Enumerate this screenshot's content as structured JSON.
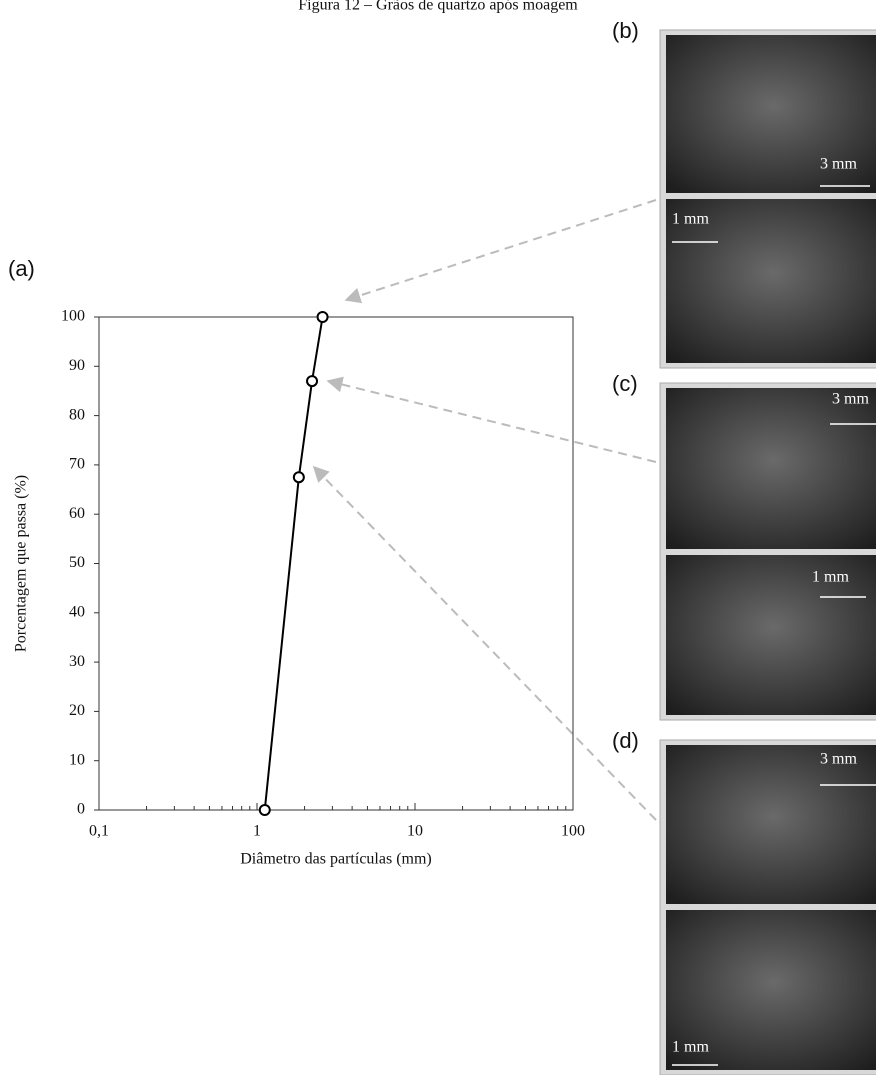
{
  "figure_title": "Figura 12 – Grãos de quartzo após moagem",
  "chart_data": {
    "type": "line",
    "panel_label": "(a)",
    "x": [
      1.12,
      1.84,
      2.23,
      2.6
    ],
    "values": [
      0,
      67.5,
      87,
      100
    ],
    "color": "#000000",
    "marker": "circle",
    "x_scale": "log",
    "xlim": [
      0.1,
      100
    ],
    "xticks": [
      {
        "value": 0.1,
        "label": "0,1"
      },
      1,
      10,
      100
    ],
    "ylim": [
      0,
      100
    ],
    "yticks": [
      0,
      10,
      20,
      30,
      40,
      50,
      60,
      70,
      80,
      90,
      100
    ],
    "xlabel": "Diâmetro das partículas (mm)",
    "ylabel": "Porcentagem que passa (%)"
  },
  "panels": [
    {
      "label": "(b)",
      "scales": [
        "3 mm",
        "1 mm"
      ]
    },
    {
      "label": "(c)",
      "scales": [
        "3 mm",
        "1 mm"
      ]
    },
    {
      "label": "(d)",
      "scales": [
        "3 mm",
        "1 mm"
      ]
    }
  ]
}
